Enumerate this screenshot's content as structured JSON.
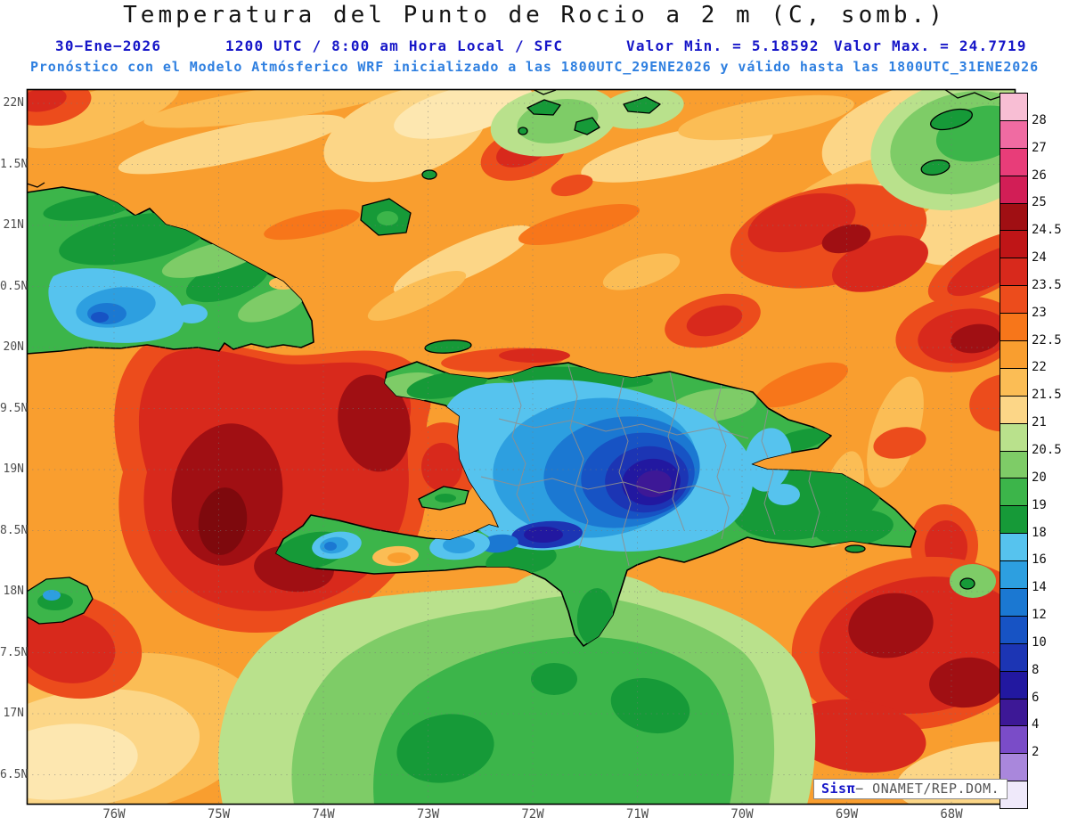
{
  "title": "Temperatura del Punto de Rocio a 2 m (C, somb.)",
  "header": {
    "date": "30−Ene−2026",
    "time": "1200 UTC / 8:00 am Hora Local / SFC",
    "min": "Valor Min. = 5.18592",
    "max": "Valor Max. = 24.7719",
    "model_line": "Pronóstico con el Modelo Atmósferico WRF inicializado a las 1800UTC_29ENE2026 y válido hasta las  1800UTC_31ENE2026"
  },
  "watermark": {
    "prefix": "Sisπ",
    "suffix": "− ONAMET/REP.DOM."
  },
  "chart_data": {
    "type": "heatmap",
    "title": "Temperatura del Punto de Rocio a 2 m (C, somb.)",
    "units": "C",
    "valid_date": "30-Ene-2026",
    "valid_time": "1200 UTC / 8:00 am Hora Local / SFC",
    "level": "SFC",
    "value_min": 5.18592,
    "value_max": 24.7719,
    "model": "WRF",
    "init_time": "1800UTC_29ENE2026",
    "valid_until": "1800UTC_31ENE2026",
    "x_tick_labels": [
      "76W",
      "75W",
      "74W",
      "73W",
      "72W",
      "71W",
      "70W",
      "69W",
      "68W"
    ],
    "y_tick_labels": [
      "22N",
      "1.5N",
      "21N",
      "0.5N",
      "20N",
      "9.5N",
      "19N",
      "8.5N",
      "18N",
      "7.5N",
      "17N",
      "6.5N"
    ],
    "colorbar": {
      "labels": [
        "28",
        "27",
        "26",
        "25",
        "24.5",
        "24",
        "23.5",
        "23",
        "22.5",
        "22",
        "21.5",
        "21",
        "20.5",
        "20",
        "19",
        "18",
        "16",
        "14",
        "12",
        "10",
        "8",
        "6",
        "4",
        "2"
      ],
      "colors": [
        "#f8bed4",
        "#f06ba2",
        "#e83d79",
        "#d21e56",
        "#a00f13",
        "#bf1517",
        "#d8291c",
        "#ec4c1c",
        "#f7761a",
        "#f99e2f",
        "#fbbd55",
        "#fcd687",
        "#b9e18c",
        "#7ecc67",
        "#3cb54a",
        "#169a38",
        "#56c3ee",
        "#2d9fe0",
        "#1b78d2",
        "#1753c4",
        "#1c35b4",
        "#2218a0",
        "#3d1896",
        "#7a4cc8",
        "#a987dc",
        "#efe9fa"
      ]
    },
    "notable_features": [
      "Lowest dew points (4-12 C, blue/indigo shading) over the Cordillera Central of Hispaniola",
      "Green shading (18-21 C) over eastern Cuba, bottom-center sea area and small Bahamian islands",
      "Red shading (23.5-25 C) over Windward Passage, northeast and southeast ocean areas",
      "Orange/tan shading (21-23 C) over most remaining ocean"
    ]
  }
}
